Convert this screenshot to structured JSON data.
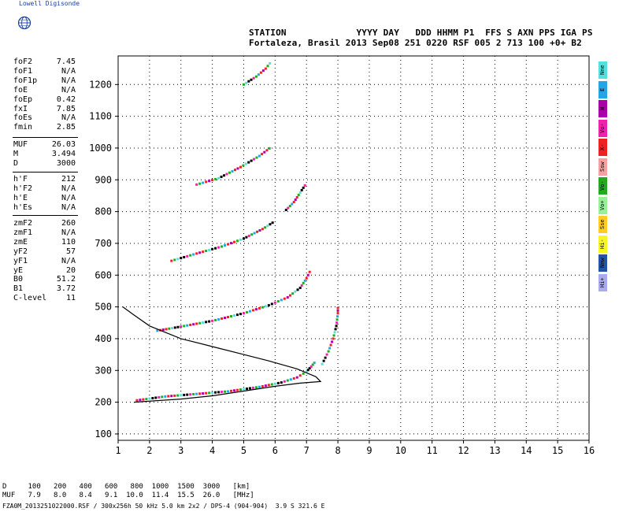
{
  "brand": "Lowell Digisonde",
  "header": {
    "line1": "STATION             YYYY DAY   DDD HHMM P1  FFS S AXN PPS IGA PS",
    "line2": "Fortaleza, Brasil 2013 Sep08 251 0220 RSF 005 2 713 100 +0+ B2"
  },
  "params": {
    "group1": [
      {
        "label": "foF2",
        "value": "7.45"
      },
      {
        "label": "foF1",
        "value": "N/A"
      },
      {
        "label": "foF1p",
        "value": "N/A"
      },
      {
        "label": "foE",
        "value": "N/A"
      },
      {
        "label": "foEp",
        "value": "0.42"
      },
      {
        "label": "fxI",
        "value": "7.85"
      },
      {
        "label": "foEs",
        "value": "N/A"
      },
      {
        "label": "fmin",
        "value": "2.85"
      }
    ],
    "group2": [
      {
        "label": "MUF",
        "value": "26.03"
      },
      {
        "label": "M",
        "value": "3.494"
      },
      {
        "label": "D",
        "value": "3000"
      }
    ],
    "group3": [
      {
        "label": "h'F",
        "value": "212"
      },
      {
        "label": "h'F2",
        "value": "N/A"
      },
      {
        "label": "h'E",
        "value": "N/A"
      },
      {
        "label": "h'Es",
        "value": "N/A"
      }
    ],
    "group4": [
      {
        "label": "zmF2",
        "value": "260"
      },
      {
        "label": "zmF1",
        "value": "N/A"
      },
      {
        "label": "zmE",
        "value": "110"
      },
      {
        "label": "yF2",
        "value": "57"
      },
      {
        "label": "yF1",
        "value": "N/A"
      },
      {
        "label": "yE",
        "value": "20"
      },
      {
        "label": "B0",
        "value": "51.2"
      },
      {
        "label": "B1",
        "value": "3.72"
      },
      {
        "label": "C-level",
        "value": "11"
      }
    ]
  },
  "legend": [
    {
      "label": "Nne",
      "color": "#55e0e0"
    },
    {
      "label": "E",
      "color": "#22a6e6"
    },
    {
      "label": "W",
      "color": "#aa00aa"
    },
    {
      "label": "Vo-",
      "color": "#ee22aa"
    },
    {
      "label": "X-",
      "color": "#ee2222"
    },
    {
      "label": "Ssw",
      "color": "#f6a0a0"
    },
    {
      "label": "Vo-",
      "color": "#22aa22"
    },
    {
      "label": "Vo+",
      "color": "#99ee99"
    },
    {
      "label": "Sse",
      "color": "#ffcc22"
    },
    {
      "label": "Hi-",
      "color": "#f6f622"
    },
    {
      "label": "Nnw",
      "color": "#2255aa"
    },
    {
      "label": "Hi+",
      "color": "#aaaaee"
    }
  ],
  "footer": {
    "d_row": "D     100   200   400   600   800  1000  1500  3000   [km]",
    "muf_row": "MUF   7.9   8.0   8.4   9.1  10.0  11.4  15.5  26.0   [MHz]",
    "file_line": "FZA0M_2013251022000.RSF / 300x256h 50 kHz 5.0 km 2x2 / DPS-4 (904-904)  3.9 S 321.6 E"
  },
  "chart_data": {
    "type": "scatter",
    "xlim": [
      1,
      16
    ],
    "ylim": [
      80,
      1290
    ],
    "xticks": [
      1,
      2,
      3,
      4,
      5,
      6,
      7,
      8,
      9,
      10,
      11,
      12,
      13,
      14,
      15,
      16
    ],
    "yticks": [
      100,
      200,
      300,
      400,
      500,
      600,
      700,
      800,
      900,
      1000,
      1100,
      1200
    ],
    "grid": true,
    "traces": [
      {
        "name_shown": false,
        "color": "#000000",
        "points": [
          [
            1.6,
            206
          ],
          [
            2.5,
            218
          ],
          [
            3.5,
            226
          ],
          [
            4.5,
            234
          ],
          [
            5.5,
            248
          ],
          [
            6.2,
            262
          ],
          [
            6.7,
            278
          ],
          [
            7.0,
            296
          ],
          [
            7.15,
            312
          ],
          [
            7.3,
            330
          ]
        ]
      },
      {
        "name_shown": false,
        "color": "#000000",
        "points": [
          [
            2.25,
            425
          ],
          [
            3,
            438
          ],
          [
            4,
            456
          ],
          [
            5,
            480
          ],
          [
            5.8,
            505
          ],
          [
            6.4,
            530
          ],
          [
            6.8,
            560
          ],
          [
            7.0,
            590
          ],
          [
            7.15,
            620
          ]
        ]
      },
      {
        "name_shown": false,
        "color": "#000000",
        "points": [
          [
            2.7,
            645
          ],
          [
            3.5,
            668
          ],
          [
            4.3,
            690
          ],
          [
            5.0,
            715
          ],
          [
            5.6,
            745
          ],
          [
            6.0,
            770
          ]
        ]
      },
      {
        "name_shown": false,
        "color": "#000000",
        "points": [
          [
            6.35,
            805
          ],
          [
            6.6,
            830
          ],
          [
            6.8,
            860
          ],
          [
            7.0,
            890
          ]
        ]
      },
      {
        "name_shown": false,
        "color": "#000000",
        "points": [
          [
            3.5,
            885
          ],
          [
            4.2,
            905
          ],
          [
            4.9,
            940
          ],
          [
            5.5,
            975
          ],
          [
            5.9,
            1005
          ]
        ]
      },
      {
        "name_shown": false,
        "color": "#000000",
        "points": [
          [
            5.0,
            1200
          ],
          [
            5.4,
            1225
          ],
          [
            5.7,
            1250
          ],
          [
            5.9,
            1275
          ]
        ]
      },
      {
        "name_shown": false,
        "color": "#000000",
        "points": [
          [
            7.5,
            320
          ],
          [
            7.7,
            360
          ],
          [
            7.85,
            400
          ],
          [
            7.95,
            440
          ],
          [
            8.0,
            480
          ],
          [
            8.0,
            505
          ]
        ]
      }
    ],
    "model_curve": [
      [
        1.5,
        200
      ],
      [
        3,
        210
      ],
      [
        4,
        220
      ],
      [
        5,
        235
      ],
      [
        6,
        250
      ],
      [
        6.8,
        260
      ],
      [
        7.45,
        265
      ],
      [
        7.3,
        280
      ],
      [
        6.7,
        305
      ],
      [
        5.8,
        330
      ],
      [
        5,
        350
      ],
      [
        4,
        375
      ],
      [
        3,
        400
      ],
      [
        2,
        440
      ],
      [
        1.5,
        475
      ],
      [
        1.15,
        500
      ]
    ]
  }
}
